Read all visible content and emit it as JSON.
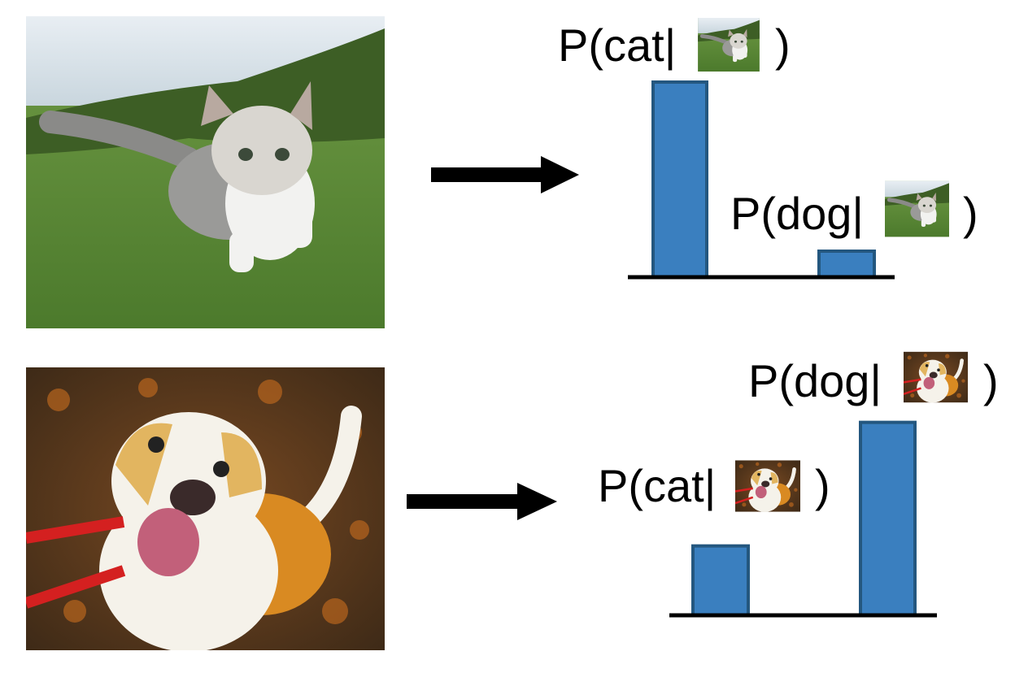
{
  "rows": [
    {
      "bars": [
        {
          "label": "P(cat|",
          "close": ")",
          "value": 0.9
        },
        {
          "label": "P(dog|",
          "close": ")",
          "value": 0.12
        }
      ]
    },
    {
      "bars": [
        {
          "label": "P(cat|",
          "close": ")",
          "value": 0.32
        },
        {
          "label": "P(dog|",
          "close": ")",
          "value": 0.89
        }
      ]
    }
  ]
}
